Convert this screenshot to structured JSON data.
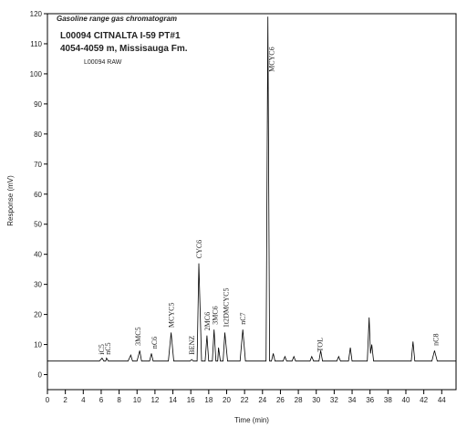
{
  "chart_data": {
    "type": "line",
    "title": "Gasoline range gas chromatogram",
    "subtitle": "L00094   CITNALTA I-59   PT#1",
    "subtitle2": "4054-4059 m, Missisauga Fm.",
    "trace_label": "L00094 RAW",
    "x_label": "Time (min)",
    "y_label": "Response (mV)",
    "xlim": [
      0,
      45.6
    ],
    "ylim": [
      -5,
      120
    ],
    "xticks": [
      0,
      2,
      4,
      6,
      8,
      10,
      12,
      14,
      16,
      18,
      20,
      22,
      24,
      26,
      28,
      30,
      32,
      34,
      36,
      38,
      40,
      42,
      44
    ],
    "yticks": [
      0,
      10,
      20,
      30,
      40,
      50,
      60,
      70,
      80,
      90,
      100,
      110,
      120
    ],
    "color": "#000000",
    "x": [
      0,
      5.8,
      6.1,
      6.3,
      6.5,
      6.6,
      6.8,
      9.0,
      9.3,
      9.5,
      10.0,
      10.3,
      10.5,
      11.4,
      11.6,
      11.8,
      13.5,
      13.8,
      14.1,
      15.9,
      16.1,
      16.3,
      16.7,
      16.9,
      17.2,
      17.6,
      17.8,
      18.0,
      18.4,
      18.6,
      18.8,
      19.0,
      19.1,
      19.3,
      19.6,
      19.8,
      20.1,
      21.5,
      21.8,
      22.1,
      24.4,
      24.6,
      24.8,
      25.0,
      25.2,
      25.4,
      26.3,
      26.5,
      26.7,
      27.3,
      27.5,
      27.7,
      29.3,
      29.5,
      29.7,
      30.3,
      30.5,
      30.7,
      32.3,
      32.5,
      32.7,
      33.6,
      33.8,
      34.0,
      35.7,
      35.9,
      36.05,
      36.2,
      36.4,
      40.6,
      40.8,
      41.0,
      42.9,
      43.2,
      43.5,
      45.6
    ],
    "values": [
      4.5,
      4.5,
      5.5,
      4.5,
      4.5,
      5.5,
      4.5,
      4.5,
      6.5,
      4.5,
      4.5,
      8,
      4.5,
      4.5,
      7,
      4.5,
      4.5,
      14,
      4.5,
      4.5,
      5,
      4.5,
      4.5,
      37,
      4.5,
      4.5,
      13,
      4.5,
      4.5,
      15,
      4.5,
      4.5,
      9,
      4.5,
      4.5,
      14,
      4.5,
      4.5,
      15,
      4.5,
      4.5,
      119,
      4.5,
      4.5,
      7,
      4.5,
      4.5,
      6,
      4.5,
      4.5,
      6,
      4.5,
      4.5,
      6,
      4.5,
      4.5,
      8,
      4.5,
      4.5,
      6,
      4.5,
      4.5,
      9,
      4.5,
      4.5,
      19,
      7,
      10,
      4.5,
      4.5,
      11,
      4.5,
      4.5,
      8,
      4.5,
      4.5
    ],
    "annotations": [
      {
        "text": "iC5",
        "x": 6.0,
        "y": 6
      },
      {
        "text": "nC5",
        "x": 6.7,
        "y": 6
      },
      {
        "text": "3MC5",
        "x": 10.1,
        "y": 9
      },
      {
        "text": "nC6",
        "x": 11.9,
        "y": 8
      },
      {
        "text": "MCYC5",
        "x": 13.8,
        "y": 15
      },
      {
        "text": "BENZ",
        "x": 16.1,
        "y": 6
      },
      {
        "text": "CYC6",
        "x": 16.9,
        "y": 38
      },
      {
        "text": "2MC6",
        "x": 17.8,
        "y": 14
      },
      {
        "text": "3MC6",
        "x": 18.7,
        "y": 16
      },
      {
        "text": "1t2DMCYC5",
        "x": 19.9,
        "y": 15
      },
      {
        "text": "nC7",
        "x": 21.8,
        "y": 16
      },
      {
        "text": "MCYC6",
        "x": 25.0,
        "y": 100
      },
      {
        "text": "TOL",
        "x": 30.4,
        "y": 7
      },
      {
        "text": "nC8",
        "x": 43.3,
        "y": 9
      }
    ]
  }
}
